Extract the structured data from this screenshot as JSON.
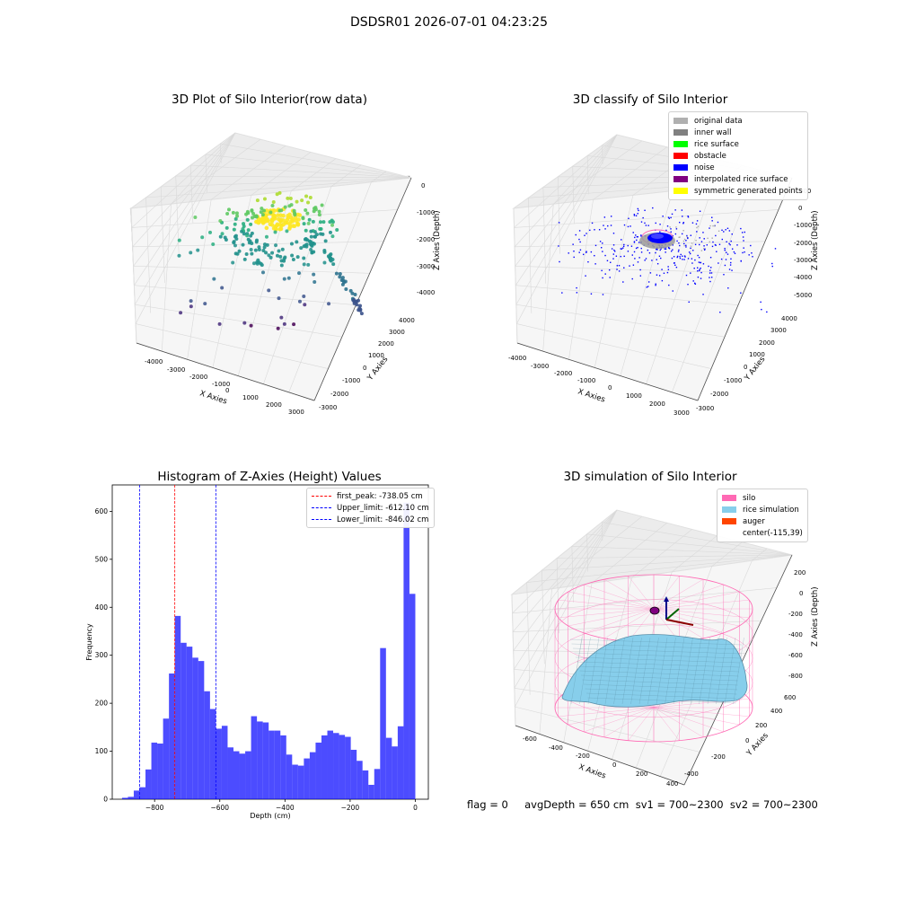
{
  "suptitle": "DSDSR01 2026-07-01 04:23:25",
  "footer": "flag = 0     avgDepth = 650 cm  sv1 = 700~2300  sv2 = 700~2300",
  "chart_data": [
    {
      "type": "scatter",
      "title": "3D Plot of Silo Interior(row data)",
      "xlabel": "X Axies",
      "ylabel": "Y Axies",
      "zlabel": "Z Axies (Depth)",
      "x_ticks": [
        "-4000",
        "-3000",
        "-2000",
        "-1000",
        "0",
        "1000",
        "2000",
        "3000"
      ],
      "y_ticks": [
        "-3000",
        "-2000",
        "-1000",
        "0",
        "1000",
        "2000",
        "3000",
        "4000"
      ],
      "z_ticks": [
        "0",
        "-1000",
        "-2000",
        "-3000",
        "-4000"
      ],
      "colormap": "viridis"
    },
    {
      "type": "scatter",
      "title": "3D classify of Silo Interior",
      "xlabel": "X Axies",
      "ylabel": "Y Axies",
      "zlabel": "Z Axies (Depth)",
      "x_ticks": [
        "-4000",
        "-3000",
        "-2000",
        "-1000",
        "0",
        "1000",
        "2000",
        "3000"
      ],
      "y_ticks": [
        "-3000",
        "-2000",
        "-1000",
        "0",
        "1000",
        "2000",
        "3000",
        "4000"
      ],
      "z_ticks": [
        "000",
        "0",
        "-1000",
        "-2000",
        "-3000",
        "-4000",
        "-5000"
      ],
      "legend": [
        {
          "label": "original data",
          "color": "#b0b0b0"
        },
        {
          "label": "inner wall",
          "color": "#808080"
        },
        {
          "label": "rice surface",
          "color": "#00ff00"
        },
        {
          "label": "obstacle",
          "color": "#ff0000"
        },
        {
          "label": "noise",
          "color": "#0000ff"
        },
        {
          "label": "interpolated rice surface",
          "color": "#800080"
        },
        {
          "label": "symmetric generated points",
          "color": "#ffff00"
        }
      ]
    },
    {
      "type": "bar",
      "title": "Histogram of Z-Axies (Height) Values",
      "xlabel": "Depth (cm)",
      "ylabel": "Frequency",
      "xlim": [
        -930,
        40
      ],
      "ylim": [
        0,
        655
      ],
      "x_ticks": [
        -800,
        -600,
        -400,
        -200,
        0
      ],
      "y_ticks": [
        0,
        100,
        200,
        300,
        400,
        500,
        600
      ],
      "bin_start": -900,
      "bin_width": 18,
      "values": [
        3,
        5,
        18,
        25,
        62,
        118,
        116,
        168,
        262,
        382,
        326,
        318,
        295,
        288,
        225,
        188,
        147,
        153,
        108,
        100,
        95,
        100,
        173,
        162,
        160,
        143,
        143,
        133,
        93,
        72,
        70,
        85,
        98,
        118,
        133,
        143,
        138,
        134,
        130,
        103,
        80,
        60,
        30,
        63,
        315,
        128,
        110,
        152,
        618,
        428
      ],
      "bar_color": "#0000ff",
      "legend": [
        {
          "label": "first_peak: -738.05 cm",
          "color": "#ff0000",
          "x": -738.05
        },
        {
          "label": "Upper_limit: -612.10 cm",
          "color": "#0000ff",
          "x": -612.1
        },
        {
          "label": "Lower_limit: -846.02 cm",
          "color": "#0000ff",
          "x": -846.02
        }
      ]
    },
    {
      "type": "area",
      "title": "3D simulation of Silo Interior",
      "xlabel": "X Axies",
      "ylabel": "Y Axies",
      "zlabel": "Z Axies (Depth)",
      "x_ticks": [
        "-600",
        "-400",
        "-200",
        "0",
        "200",
        "400"
      ],
      "y_ticks": [
        "-400",
        "-200",
        "0",
        "200",
        "400",
        "600"
      ],
      "z_ticks": [
        "200",
        "0",
        "-200",
        "-400",
        "-600",
        "-800"
      ],
      "legend": [
        {
          "label": "silo",
          "color": "#ff69b4"
        },
        {
          "label": "rice simulation",
          "color": "#87ceeb"
        },
        {
          "label": "auger",
          "color": "#ff4500"
        },
        {
          "label": "center(-115,39)",
          "color": ""
        }
      ]
    }
  ]
}
